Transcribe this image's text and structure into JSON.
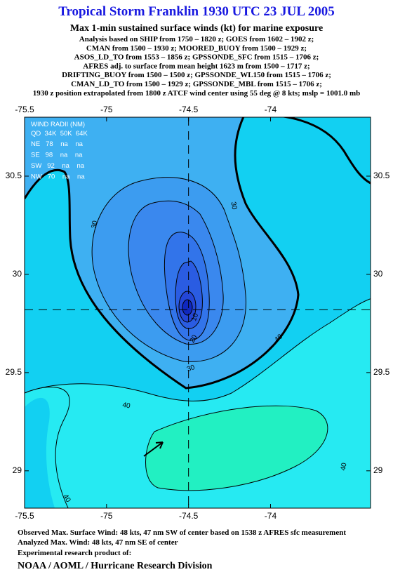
{
  "title": "Tropical Storm Franklin 1930 UTC 23 JUL 2005",
  "subtitle": "Max 1-min sustained surface winds (kt) for marine exposure",
  "analysis_lines": [
    "Analysis based on  SHIP from 1750 – 1820 z;  GOES from 1602 – 1902 z;",
    "CMAN from 1500 – 1930 z;  MOORED_BUOY from 1500 – 1929 z;",
    "ASOS_LD_TO from 1553 – 1856 z;  GPSSONDE_SFC from 1515 – 1706 z;",
    "AFRES adj. to surface from mean height 1623 m from 1500 – 1717 z;",
    "DRIFTING_BUOY from 1500 – 1500 z;  GPSSONDE_WL150 from 1515 – 1706 z;",
    "CMAN_LD_TO from 1500 – 1929 z;  GPSSONDE_MBL from 1515 – 1706 z;",
    "1930 z position extrapolated from 1800 z ATCF wind center using 55 deg @ 8 kts; mslp = 1001.0 mb"
  ],
  "map": {
    "xlim": [
      -75.5,
      -73.39
    ],
    "ylim": [
      28.81,
      30.8
    ],
    "xticks": [
      -75.5,
      -75.0,
      -74.5,
      -74.0
    ],
    "yticks": [
      29.0,
      29.5,
      30.0,
      30.5
    ],
    "center": {
      "lon": -74.5,
      "lat": 29.82
    },
    "contour_labels": [
      30,
      30,
      30,
      20,
      10,
      40,
      40,
      40,
      40
    ],
    "wind_radii": {
      "title": "WIND RADII (NM)",
      "header": "QD  34K  50K  64K",
      "rows": [
        "NE   78    na    na",
        "SE   98    na    na",
        "SW   92    na    na",
        "NW   70    na    na"
      ]
    }
  },
  "footer": [
    "Observed Max. Surface Wind: 48 kts, 47 nm SW of center based on 1538 z AFRES sfc measurement",
    "Analyzed Max. Wind: 48 kts, 47 nm SE of center",
    "Experimental research product of:"
  ],
  "credit": "NOAA / AOML / Hurricane Research Division"
}
